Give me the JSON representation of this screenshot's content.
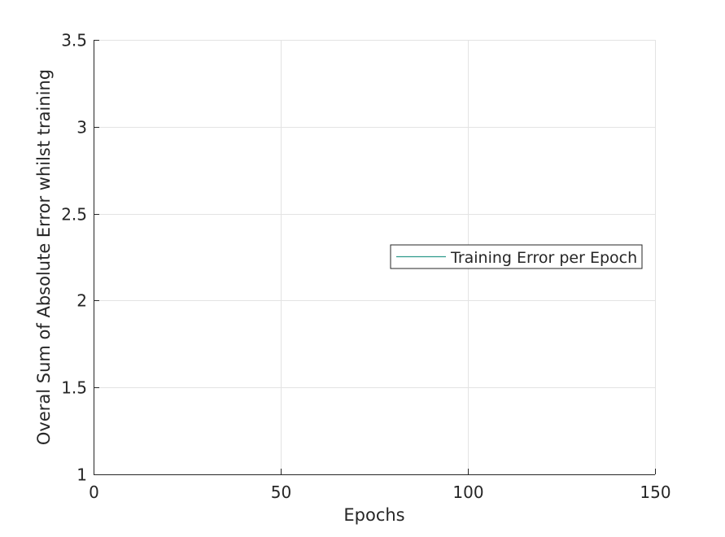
{
  "chart_data": {
    "type": "line",
    "title": "",
    "xlabel": "Epochs",
    "ylabel": "Overal Sum of Absolute Error whilst training",
    "xlim": [
      0,
      150
    ],
    "ylim": [
      1,
      3.5
    ],
    "xticks": [
      0,
      50,
      100,
      150
    ],
    "yticks": [
      1,
      1.5,
      2,
      2.5,
      3,
      3.5
    ],
    "xtick_labels": [
      "0",
      "50",
      "100",
      "150"
    ],
    "ytick_labels": [
      "1",
      "1.5",
      "2",
      "2.5",
      "3",
      "3.5"
    ],
    "grid": true,
    "legend_position": "east",
    "series": [
      {
        "name": "Training Error per Epoch",
        "color": "#2e9a8c",
        "x": [],
        "y": []
      }
    ]
  }
}
